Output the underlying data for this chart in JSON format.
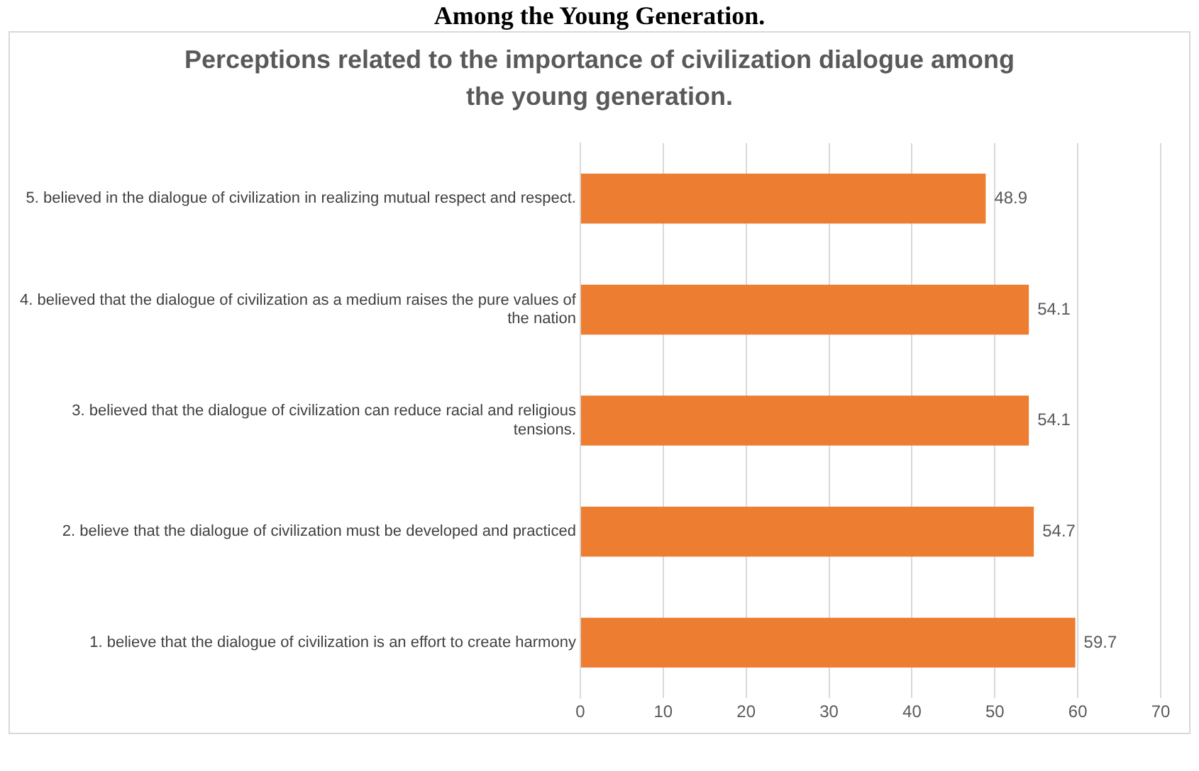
{
  "chart_data": {
    "type": "bar",
    "orientation": "horizontal",
    "title": "Perceptions related to the importance of civilization dialogue among the young generation.",
    "annotations": [
      "Among the Young Generation."
    ],
    "categories": [
      "5. believed in the dialogue of civilization in realizing mutual respect and respect.",
      "4. believed that the dialogue of civilization as a medium raises the pure values of the nation",
      "3. believed that the dialogue of civilization can reduce racial and religious tensions.",
      "2. believe that the dialogue of civilization must be developed and practiced",
      "1. believe that the dialogue of civilization is an effort to create harmony"
    ],
    "values": [
      48.9,
      54.1,
      54.1,
      54.7,
      59.7
    ],
    "color": "#ed7d31",
    "xlim": [
      0,
      70
    ],
    "xticks": [
      0,
      10,
      20,
      30,
      40,
      50,
      60,
      70
    ],
    "grid": "x",
    "legend": false,
    "data_labels": true
  }
}
